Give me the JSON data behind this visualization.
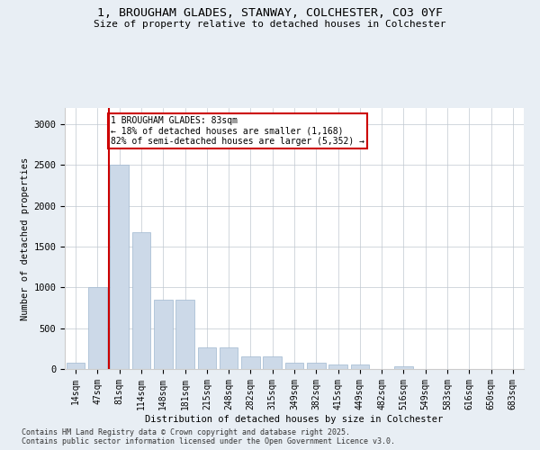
{
  "title_line1": "1, BROUGHAM GLADES, STANWAY, COLCHESTER, CO3 0YF",
  "title_line2": "Size of property relative to detached houses in Colchester",
  "xlabel": "Distribution of detached houses by size in Colchester",
  "ylabel": "Number of detached properties",
  "categories": [
    "14sqm",
    "47sqm",
    "81sqm",
    "114sqm",
    "148sqm",
    "181sqm",
    "215sqm",
    "248sqm",
    "282sqm",
    "315sqm",
    "349sqm",
    "382sqm",
    "415sqm",
    "449sqm",
    "482sqm",
    "516sqm",
    "549sqm",
    "583sqm",
    "616sqm",
    "650sqm",
    "683sqm"
  ],
  "values": [
    75,
    1000,
    2500,
    1680,
    850,
    850,
    270,
    270,
    150,
    150,
    80,
    80,
    55,
    50,
    0,
    30,
    0,
    0,
    0,
    0,
    0
  ],
  "bar_color": "#ccd9e8",
  "bar_edgecolor": "#a0b8d0",
  "vline_color": "#cc0000",
  "annotation_text": "1 BROUGHAM GLADES: 83sqm\n← 18% of detached houses are smaller (1,168)\n82% of semi-detached houses are larger (5,352) →",
  "annotation_box_edgecolor": "#cc0000",
  "ylim": [
    0,
    3200
  ],
  "yticks": [
    0,
    500,
    1000,
    1500,
    2000,
    2500,
    3000
  ],
  "footer_line1": "Contains HM Land Registry data © Crown copyright and database right 2025.",
  "footer_line2": "Contains public sector information licensed under the Open Government Licence v3.0.",
  "bg_color": "#e8eef4",
  "plot_bg_color": "#ffffff"
}
